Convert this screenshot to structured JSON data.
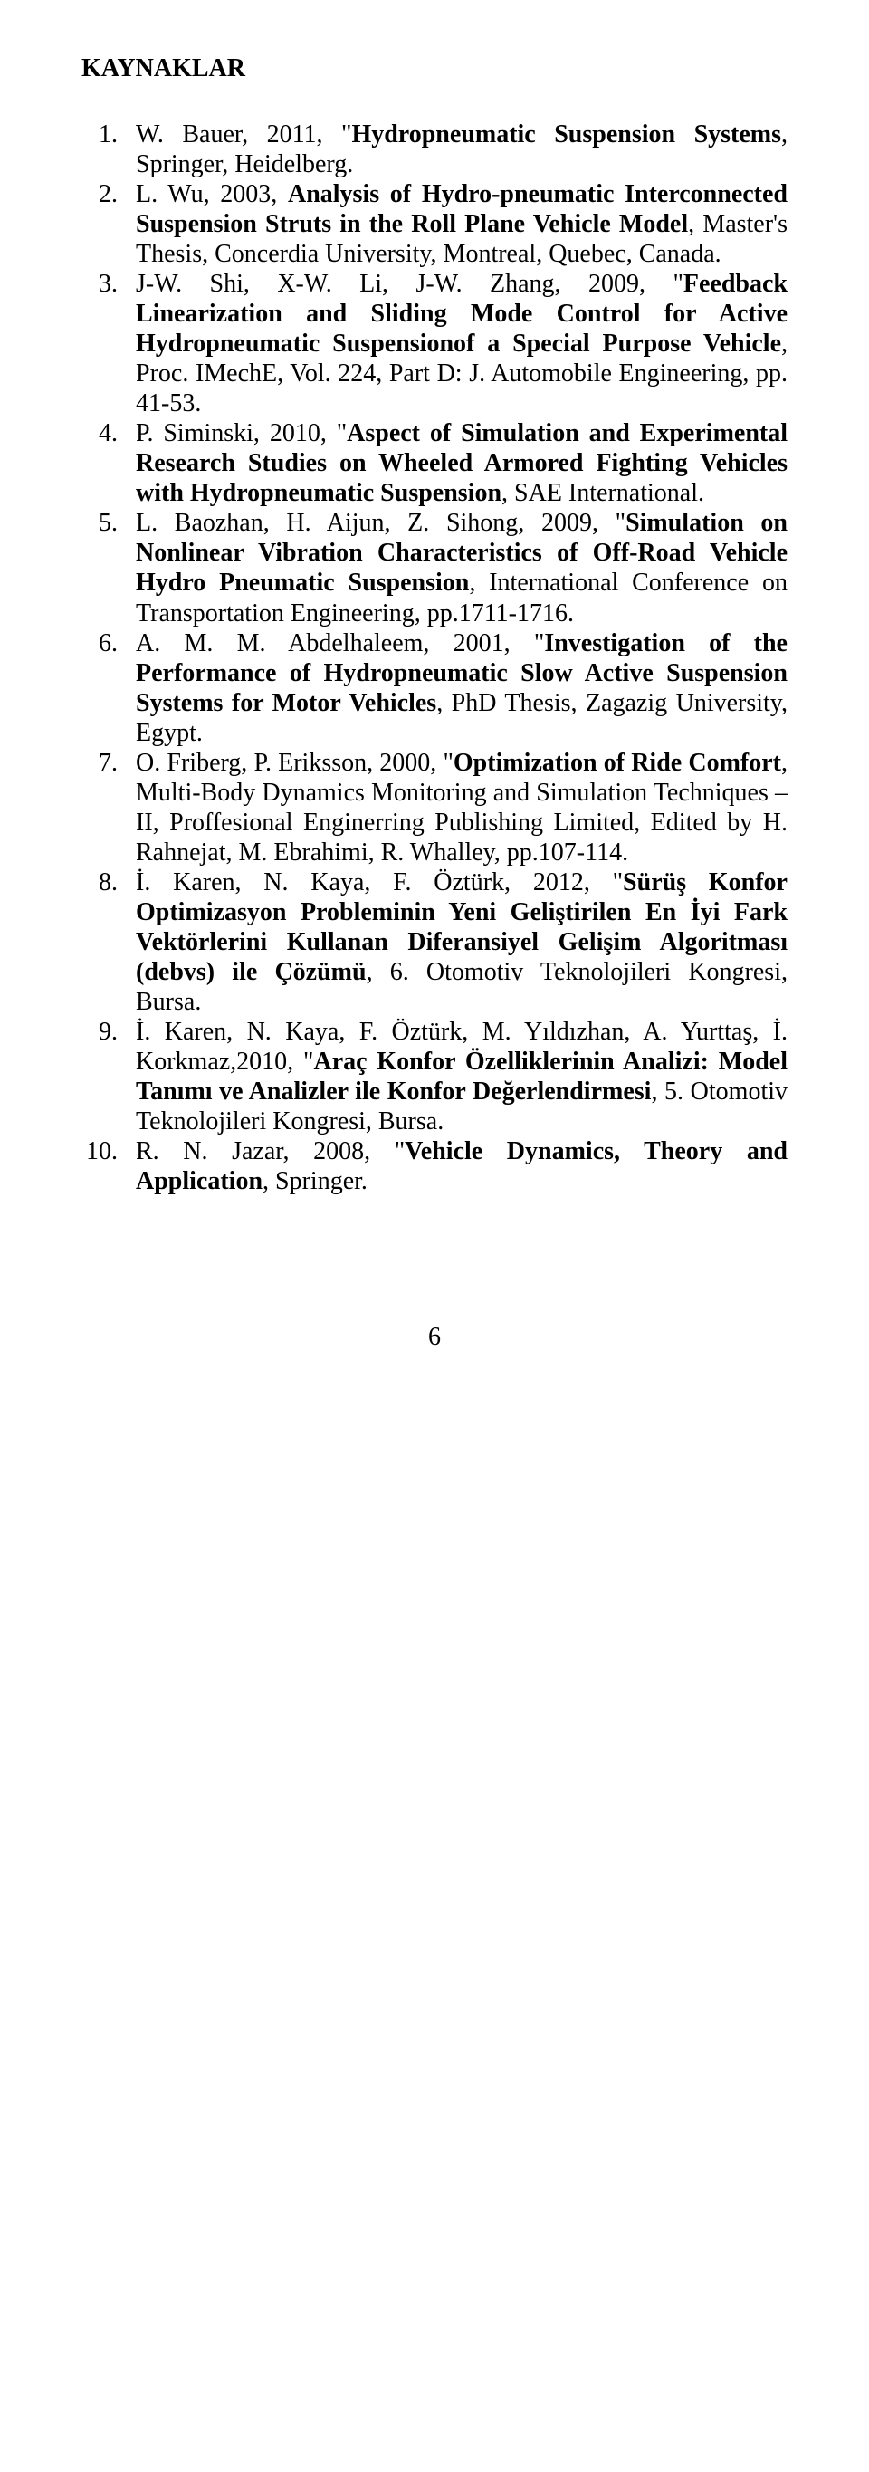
{
  "heading": "KAYNAKLAR",
  "page_number": "6",
  "refs": [
    {
      "pre": "W. Bauer, 2011, \"",
      "bold": "Hydropneumatic Suspension Systems",
      "post": ", Springer, Heidelberg."
    },
    {
      "pre": "L. Wu, 2003, ",
      "bold": "Analysis of Hydro-pneumatic Interconnected Suspension Struts in the Roll Plane Vehicle Model",
      "post": ", Master's Thesis, Concerdia University, Montreal, Quebec, Canada."
    },
    {
      "pre": "J-W. Shi, X-W. Li, J-W. Zhang, 2009, \"",
      "bold": "Feedback Linearization and Sliding Mode Control for Active Hydropneumatic Suspensionof a Special Purpose Vehicle",
      "post": ", Proc. IMechE, Vol. 224, Part D: J. Automobile Engineering, pp. 41-53."
    },
    {
      "pre": "P. Siminski, 2010, \"",
      "bold": "Aspect of Simulation and Experimental Research Studies on Wheeled Armored Fighting Vehicles with Hydropneumatic Suspension",
      "post": ", SAE International."
    },
    {
      "pre": "L. Baozhan, H. Aijun, Z. Sihong, 2009, \"",
      "bold": "Simulation on Nonlinear Vibration Characteristics of Off-Road Vehicle Hydro Pneumatic Suspension",
      "post": ", International Conference on Transportation Engineering, pp.1711-1716."
    },
    {
      "pre": "A. M. M. Abdelhaleem, 2001, \"",
      "bold": "Investigation of the Performance of Hydropneumatic Slow Active Suspension Systems for Motor Vehicles",
      "post": ", PhD Thesis, Zagazig University, Egypt."
    },
    {
      "pre": "O. Friberg, P. Eriksson, 2000, \"",
      "bold": "Optimization of Ride Comfort",
      "post": ", Multi-Body Dynamics Monitoring and Simulation Techniques – II, Proffesional Enginerring Publishing Limited, Edited by H. Rahnejat, M. Ebrahimi, R. Whalley, pp.107-114."
    },
    {
      "pre": "İ. Karen, N. Kaya, F. Öztürk, 2012, \"",
      "bold": "Sürüş Konfor Optimizasyon Probleminin Yeni Geliştirilen En İyi Fark Vektörlerini Kullanan Diferansiyel Gelişim Algoritması (debvs) ile Çözümü",
      "post": ", 6. Otomotiv Teknolojileri Kongresi, Bursa."
    },
    {
      "pre": "İ. Karen, N. Kaya, F. Öztürk, M. Yıldızhan, A. Yurttaş, İ. Korkmaz,2010, \"",
      "bold": "Araç Konfor Özelliklerinin Analizi: Model Tanımı ve Analizler ile Konfor Değerlendirmesi",
      "post": ", 5. Otomotiv Teknolojileri Kongresi, Bursa."
    },
    {
      "pre": "R. N. Jazar, 2008, \"",
      "bold": "Vehicle Dynamics, Theory and Application",
      "post": ", Springer."
    }
  ]
}
